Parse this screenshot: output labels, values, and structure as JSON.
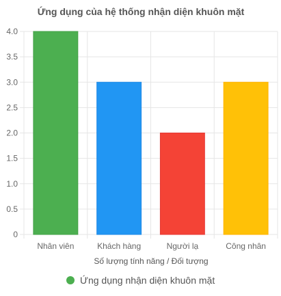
{
  "chart_data": {
    "type": "bar",
    "title": "Ứng dụng của hệ thống nhận diện khuôn mặt",
    "categories": [
      "Nhân viên",
      "Khách hàng",
      "Người lạ",
      "Công nhân"
    ],
    "series": [
      {
        "name": "Ứng dụng nhận diện khuôn mặt",
        "values": [
          4,
          3,
          2,
          3
        ],
        "colors": [
          "#4CAF50",
          "#2196F3",
          "#F44336",
          "#FFC107"
        ],
        "border_colors": [
          "#43a047",
          "#1e88e5",
          "#e53935",
          "#ffb300"
        ]
      }
    ],
    "xlabel": "Số lượng tính năng / Đối tượng",
    "ylabel": "",
    "ylim": [
      0,
      4
    ],
    "yticks": [
      "0",
      "0.5",
      "1.0",
      "1.5",
      "2.0",
      "2.5",
      "3.0",
      "3.5",
      "4.0"
    ],
    "ytick_values": [
      0,
      0.5,
      1,
      1.5,
      2,
      2.5,
      3,
      3.5,
      4
    ],
    "grid": true,
    "legend_position": "bottom",
    "legend_marker_color": "#4CAF50"
  }
}
